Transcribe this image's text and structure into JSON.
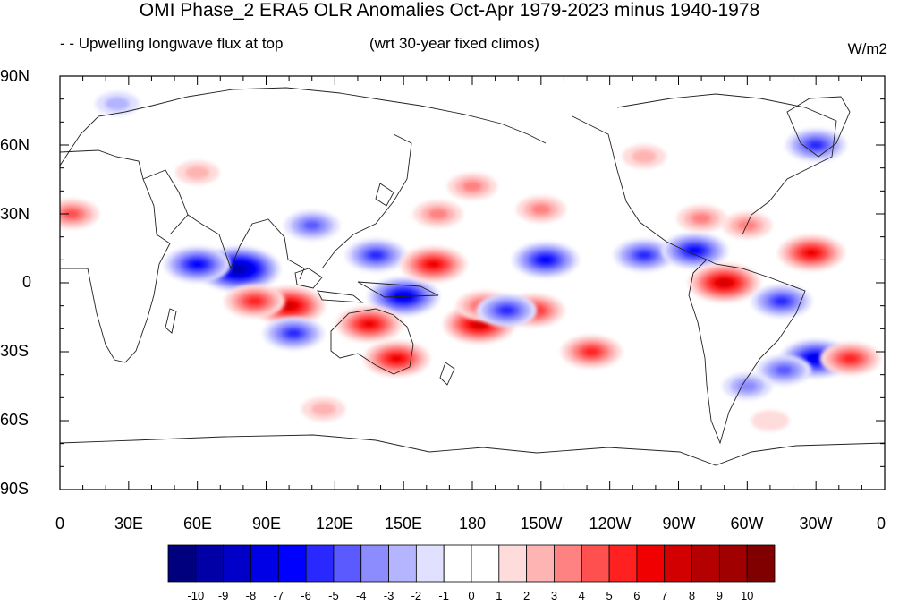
{
  "title": "OMI Phase_2 ERA5 OLR Anomalies Oct-Apr 1979-2023 minus 1940-1978",
  "subtitle_left": "- - Upwelling longwave flux at top",
  "subtitle_center": "(wrt 30-year fixed climos)",
  "units": "W/m2",
  "lat_labels": [
    "90N",
    "60N",
    "30N",
    "0",
    "30S",
    "60S",
    "90S"
  ],
  "lon_labels": [
    "0",
    "30E",
    "60E",
    "90E",
    "120E",
    "150E",
    "180",
    "150W",
    "120W",
    "90W",
    "60W",
    "30W",
    "0"
  ],
  "colorbar": {
    "labels": [
      "-10",
      "-9",
      "-8",
      "-7",
      "-6",
      "-5",
      "-4",
      "-3",
      "-2",
      "-1",
      "0",
      "1",
      "2",
      "3",
      "4",
      "5",
      "6",
      "7",
      "8",
      "9",
      "10"
    ],
    "colors": [
      "#00007f",
      "#0000a6",
      "#0000c8",
      "#0000e6",
      "#0000ff",
      "#2828ff",
      "#5a5aff",
      "#8c8cff",
      "#b4b4ff",
      "#e1e1ff",
      "#ffffff",
      "#ffffff",
      "#ffdcdc",
      "#ffb4b4",
      "#ff8282",
      "#ff5050",
      "#ff2020",
      "#f00000",
      "#d20000",
      "#b40000",
      "#a00000",
      "#800000"
    ]
  },
  "map_data": {
    "type": "filled-contour",
    "projection": "cylindrical-equidistant",
    "lon_range": [
      0,
      360
    ],
    "lat_range": [
      -90,
      90
    ],
    "contour_levels": [
      -10,
      -9,
      -8,
      -7,
      -6,
      -5,
      -4,
      -3,
      -2,
      -1,
      0,
      1,
      2,
      3,
      4,
      5,
      6,
      7,
      8,
      9,
      10
    ],
    "anomalies": [
      {
        "lon": 78,
        "lat": 6,
        "value": -9
      },
      {
        "lon": 60,
        "lat": 8,
        "value": -6
      },
      {
        "lon": 100,
        "lat": -10,
        "value": 7
      },
      {
        "lon": 85,
        "lat": -8,
        "value": 5
      },
      {
        "lon": 150,
        "lat": -6,
        "value": -7
      },
      {
        "lon": 138,
        "lat": 12,
        "value": -5
      },
      {
        "lon": 102,
        "lat": -22,
        "value": -5
      },
      {
        "lon": 135,
        "lat": -18,
        "value": 6
      },
      {
        "lon": 147,
        "lat": -33,
        "value": 6
      },
      {
        "lon": 183,
        "lat": -18,
        "value": 7
      },
      {
        "lon": 163,
        "lat": 8,
        "value": 6
      },
      {
        "lon": 207,
        "lat": -12,
        "value": 5
      },
      {
        "lon": 185,
        "lat": -10,
        "value": 4
      },
      {
        "lon": 195,
        "lat": -12,
        "value": -5
      },
      {
        "lon": 212,
        "lat": 10,
        "value": -6
      },
      {
        "lon": 232,
        "lat": -30,
        "value": 5
      },
      {
        "lon": 255,
        "lat": 12,
        "value": -5
      },
      {
        "lon": 277,
        "lat": 14,
        "value": -6
      },
      {
        "lon": 290,
        "lat": 0,
        "value": 7
      },
      {
        "lon": 328,
        "lat": 13,
        "value": 6
      },
      {
        "lon": 315,
        "lat": -8,
        "value": -5
      },
      {
        "lon": 330,
        "lat": -33,
        "value": -7
      },
      {
        "lon": 345,
        "lat": -33,
        "value": 5
      },
      {
        "lon": 316,
        "lat": -38,
        "value": -4
      },
      {
        "lon": 300,
        "lat": -45,
        "value": -3
      },
      {
        "lon": 5,
        "lat": 30,
        "value": 4
      },
      {
        "lon": 165,
        "lat": 30,
        "value": 3
      },
      {
        "lon": 180,
        "lat": 42,
        "value": 3
      },
      {
        "lon": 210,
        "lat": 32,
        "value": 3
      },
      {
        "lon": 110,
        "lat": 25,
        "value": -4
      },
      {
        "lon": 330,
        "lat": 60,
        "value": -5
      },
      {
        "lon": 280,
        "lat": 28,
        "value": 3
      },
      {
        "lon": 300,
        "lat": 25,
        "value": 3
      },
      {
        "lon": 255,
        "lat": 55,
        "value": 2
      },
      {
        "lon": 60,
        "lat": 48,
        "value": 2
      },
      {
        "lon": 25,
        "lat": 78,
        "value": -2
      },
      {
        "lon": 115,
        "lat": -55,
        "value": 2
      },
      {
        "lon": 310,
        "lat": -60,
        "value": 1
      }
    ]
  }
}
